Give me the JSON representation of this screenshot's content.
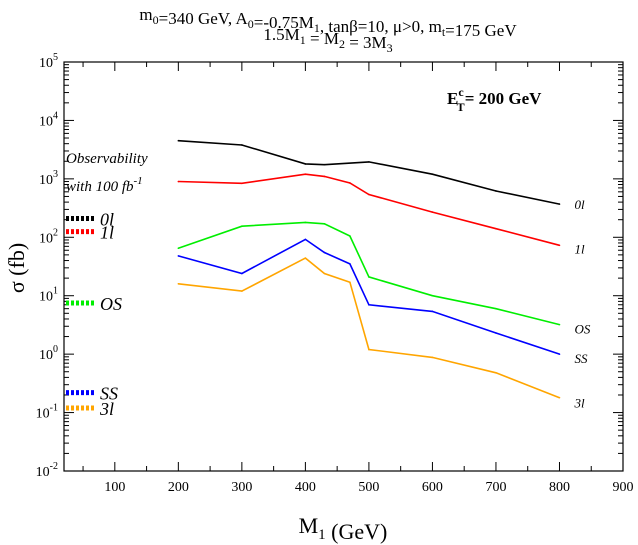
{
  "chart_data": {
    "type": "line",
    "title_line1": "m0=340 GeV, A0=-0.75M1, tanβ=10, μ>0, mt=175 GeV",
    "title_line2": "1.5M1 = M2 = 3M3",
    "xlabel": "M1 (GeV)",
    "ylabel": "σ (fb)",
    "xlim": [
      20,
      900
    ],
    "ylim_log10": [
      -2,
      5
    ],
    "yscale": "log",
    "x_ticks": [
      "100",
      "200",
      "300",
      "400",
      "500",
      "600",
      "700",
      "800",
      "900"
    ],
    "y_ticks": [
      "10-2",
      "10-1",
      "100",
      "101",
      "102",
      "103",
      "104",
      "105"
    ],
    "annotation": "EcT= 200 GeV",
    "observability_title_1": "Observability",
    "observability_title_2": "with 100 fb-1",
    "series": [
      {
        "name": "0l",
        "color": "#000000",
        "x": [
          200,
          300,
          400,
          430,
          500,
          600,
          700,
          800
        ],
        "y": [
          4500,
          3800,
          1800,
          1750,
          1950,
          1200,
          620,
          370
        ],
        "observability": 210
      },
      {
        "name": "1l",
        "color": "#ff0000",
        "x": [
          200,
          300,
          400,
          430,
          470,
          500,
          600,
          700,
          800
        ],
        "y": [
          900,
          840,
          1200,
          1100,
          850,
          540,
          270,
          140,
          73
        ],
        "observability": 125
      },
      {
        "name": "OS",
        "color": "#00ee00",
        "x": [
          200,
          300,
          400,
          430,
          470,
          500,
          600,
          700,
          800
        ],
        "y": [
          65,
          155,
          180,
          170,
          105,
          21,
          10,
          6,
          3.2
        ],
        "observability": 7.5
      },
      {
        "name": "SS",
        "color": "#0000ff",
        "x": [
          200,
          300,
          400,
          430,
          470,
          500,
          600,
          700,
          800
        ],
        "y": [
          48,
          24,
          92,
          55,
          35,
          7,
          5.4,
          2.3,
          1.0
        ],
        "observability": 0.22
      },
      {
        "name": "3l",
        "color": "#ffa500",
        "x": [
          200,
          300,
          400,
          430,
          470,
          500,
          600,
          700,
          800
        ],
        "y": [
          16,
          12,
          44,
          24,
          17,
          1.2,
          0.88,
          0.48,
          0.18
        ],
        "observability": 0.12
      }
    ]
  }
}
